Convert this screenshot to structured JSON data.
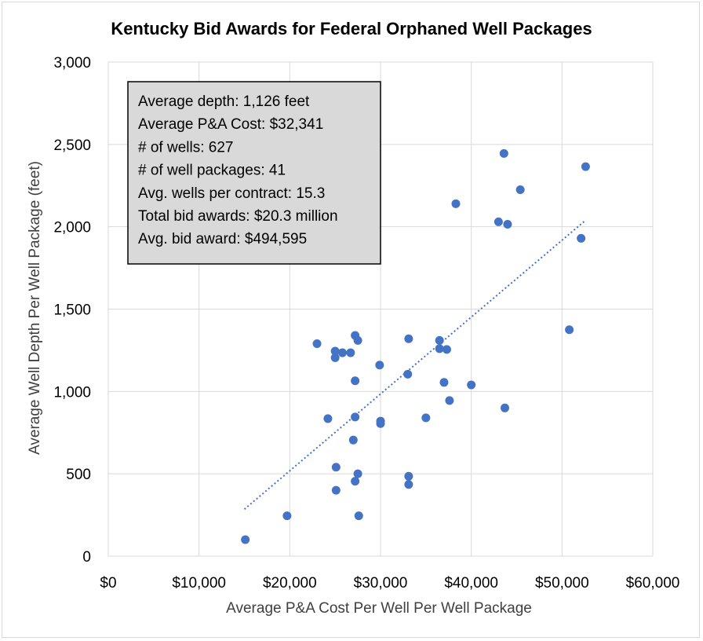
{
  "chart_data": {
    "type": "scatter",
    "title": "Kentucky Bid Awards for Federal Orphaned Well Packages",
    "xlabel": "Average P&A Cost Per Well Per Well Package",
    "ylabel": "Average Well Depth Per Well Package (feet)",
    "xlim": [
      0,
      60000
    ],
    "ylim": [
      0,
      3000
    ],
    "x_ticks": [
      0,
      10000,
      20000,
      30000,
      40000,
      50000,
      60000
    ],
    "x_tick_labels": [
      "$0",
      "$10,000",
      "$20,000",
      "$30,000",
      "$40,000",
      "$50,000",
      "$60,000"
    ],
    "y_ticks": [
      0,
      500,
      1000,
      1500,
      2000,
      2500,
      3000
    ],
    "y_tick_labels": [
      "0",
      "500",
      "1,000",
      "1,500",
      "2,000",
      "2,500",
      "3,000"
    ],
    "grid": true,
    "marker_color": "#4472c4",
    "trendline": {
      "type": "linear-dotted",
      "color": "#4472c4",
      "x": [
        15000,
        52500
      ],
      "y": [
        285,
        2035
      ]
    },
    "points": [
      {
        "x": 15100,
        "y": 100
      },
      {
        "x": 19700,
        "y": 245
      },
      {
        "x": 23000,
        "y": 1290
      },
      {
        "x": 24200,
        "y": 835
      },
      {
        "x": 25000,
        "y": 1245
      },
      {
        "x": 25000,
        "y": 1205
      },
      {
        "x": 25100,
        "y": 540
      },
      {
        "x": 25100,
        "y": 400
      },
      {
        "x": 25800,
        "y": 1235
      },
      {
        "x": 26700,
        "y": 1235
      },
      {
        "x": 27000,
        "y": 705
      },
      {
        "x": 27200,
        "y": 1340
      },
      {
        "x": 27200,
        "y": 1065
      },
      {
        "x": 27200,
        "y": 845
      },
      {
        "x": 27200,
        "y": 455
      },
      {
        "x": 27500,
        "y": 1310
      },
      {
        "x": 27500,
        "y": 500
      },
      {
        "x": 27600,
        "y": 245
      },
      {
        "x": 29900,
        "y": 1160
      },
      {
        "x": 30000,
        "y": 820
      },
      {
        "x": 30000,
        "y": 805
      },
      {
        "x": 33000,
        "y": 1105
      },
      {
        "x": 33100,
        "y": 1320
      },
      {
        "x": 33100,
        "y": 485
      },
      {
        "x": 33100,
        "y": 435
      },
      {
        "x": 35000,
        "y": 840
      },
      {
        "x": 36500,
        "y": 1310
      },
      {
        "x": 36500,
        "y": 1260
      },
      {
        "x": 37000,
        "y": 1055
      },
      {
        "x": 37300,
        "y": 1255
      },
      {
        "x": 37600,
        "y": 945
      },
      {
        "x": 38300,
        "y": 2140
      },
      {
        "x": 40000,
        "y": 1040
      },
      {
        "x": 43000,
        "y": 2030
      },
      {
        "x": 43600,
        "y": 2445
      },
      {
        "x": 43700,
        "y": 900
      },
      {
        "x": 44000,
        "y": 2015
      },
      {
        "x": 45400,
        "y": 2225
      },
      {
        "x": 50800,
        "y": 1375
      },
      {
        "x": 52100,
        "y": 1930
      },
      {
        "x": 52600,
        "y": 2365
      }
    ],
    "annotation_box": {
      "background": "#d9d9d9",
      "lines": [
        "Average depth: 1,126 feet",
        "Average P&A Cost: $32,341",
        "# of wells: 627",
        "# of well packages: 41",
        "Avg. wells per contract: 15.3",
        "Total bid awards: $20.3 million",
        "Avg. bid award: $494,595"
      ]
    }
  }
}
